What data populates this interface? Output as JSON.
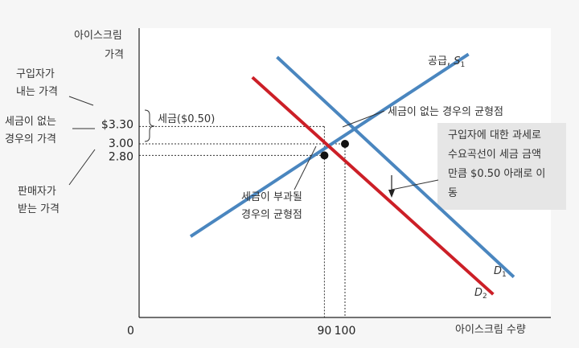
{
  "chart_data": {
    "type": "line",
    "x_axis": {
      "label": "아이스크림 수량",
      "origin_label": "0",
      "ticks": [
        {
          "value": 90,
          "label": "90"
        },
        {
          "value": 100,
          "label": "100"
        }
      ],
      "range": [
        0,
        200
      ]
    },
    "y_axis": {
      "label_line1": "아이스크림",
      "label_line2": "가격",
      "ticks": [
        {
          "value": 3.3,
          "label": "$3.30"
        },
        {
          "value": 3.0,
          "label": "3.00"
        },
        {
          "value": 2.8,
          "label": "2.80"
        }
      ],
      "range": [
        0,
        5.0
      ]
    },
    "series": [
      {
        "key": "supply",
        "label_prefix": "공급, ",
        "label_main": "S",
        "label_sub": "1",
        "color": "#4a86bf",
        "points": [
          [
            25,
            1.4
          ],
          [
            160,
            4.55
          ]
        ]
      },
      {
        "key": "demand1",
        "label_prefix": "",
        "label_main": "D",
        "label_sub": "1",
        "color": "#4a86bf",
        "points": [
          [
            67,
            4.5
          ],
          [
            182,
            0.7
          ]
        ]
      },
      {
        "key": "demand2",
        "label_prefix": "",
        "label_main": "D",
        "label_sub": "2",
        "color": "#cc1f27",
        "points": [
          [
            55,
            4.15
          ],
          [
            172,
            0.4
          ]
        ]
      }
    ],
    "equilibria": [
      {
        "key": "no_tax",
        "x": 100,
        "y": 3.0,
        "label": "세금이 없는 경우의 균형점"
      },
      {
        "key": "with_tax",
        "x": 90,
        "y": 2.8,
        "label_line1": "세금이 부과될",
        "label_line2": "경우의 균형점"
      }
    ],
    "tax_brace_label": "세금($0.50)",
    "left_labels": {
      "buyer_line1": "구입자가",
      "buyer_line2": "내는 가격",
      "no_tax_line1": "세금이 없는",
      "no_tax_line2": "경우의 가격",
      "seller_line1": "판매자가",
      "seller_line2": "받는 가격"
    },
    "note_box": {
      "line1": "구입자에 대한 과세로",
      "line2": "수요곡선이 세금 금액",
      "line3": "만큼 $0.50 아래로 이",
      "line4": "동"
    },
    "colors": {
      "supply": "#4a86bf",
      "demand1": "#4a86bf",
      "demand2": "#cc1f27",
      "axis": "#222222",
      "note_bg": "#e6e6e6"
    }
  }
}
